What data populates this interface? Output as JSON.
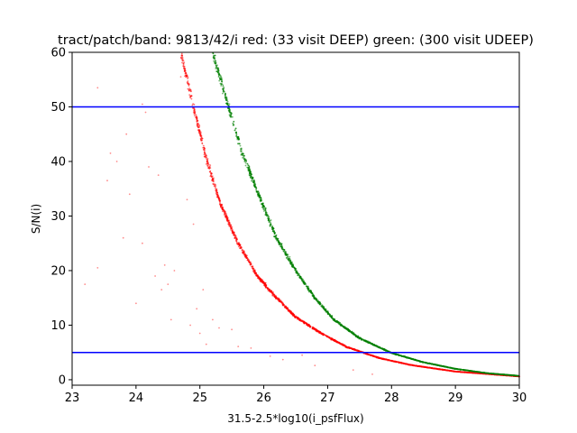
{
  "chart_data": {
    "type": "scatter",
    "title": "tract/patch/band: 9813/42/i red: (33 visit DEEP) green: (300 visit UDEEP)",
    "xlabel": "31.5-2.5*log10(i_psfFlux)",
    "ylabel": "S/N(i)",
    "xlim": [
      23,
      30
    ],
    "ylim": [
      -1,
      60
    ],
    "xticks": [
      "23",
      "24",
      "25",
      "26",
      "27",
      "28",
      "29",
      "30"
    ],
    "yticks": [
      "0",
      "10",
      "20",
      "30",
      "40",
      "50",
      "60"
    ],
    "grid": false,
    "legend": "none",
    "series": [
      {
        "color": "#ff0000",
        "curve": [
          [
            24.7,
            60
          ],
          [
            24.9,
            50
          ],
          [
            25.1,
            40.5
          ],
          [
            25.33,
            32
          ],
          [
            25.6,
            25
          ],
          [
            25.9,
            19
          ],
          [
            26.2,
            15
          ],
          [
            26.5,
            11.5
          ],
          [
            26.9,
            8.5
          ],
          [
            27.3,
            6
          ],
          [
            27.8,
            4
          ],
          [
            28.3,
            2.7
          ],
          [
            29.0,
            1.5
          ],
          [
            30.0,
            0.6
          ]
        ],
        "scattered_points": [
          [
            23.2,
            17.5
          ],
          [
            23.4,
            53.5
          ],
          [
            23.4,
            20.5
          ],
          [
            23.55,
            36.5
          ],
          [
            23.6,
            41.5
          ],
          [
            23.7,
            40
          ],
          [
            23.8,
            26
          ],
          [
            23.85,
            45
          ],
          [
            23.9,
            34
          ],
          [
            24.0,
            14
          ],
          [
            24.1,
            25
          ],
          [
            24.1,
            50.5
          ],
          [
            24.15,
            49
          ],
          [
            24.2,
            39
          ],
          [
            24.3,
            19
          ],
          [
            24.35,
            37.5
          ],
          [
            24.4,
            16.5
          ],
          [
            24.45,
            21
          ],
          [
            24.5,
            17.5
          ],
          [
            24.55,
            11
          ],
          [
            24.6,
            20
          ],
          [
            24.7,
            55.5
          ],
          [
            24.8,
            33
          ],
          [
            24.85,
            10
          ],
          [
            24.9,
            28.5
          ],
          [
            24.95,
            13
          ],
          [
            25.0,
            8.5
          ],
          [
            25.05,
            16.5
          ],
          [
            25.1,
            6.5
          ],
          [
            25.2,
            11
          ],
          [
            25.3,
            9.5
          ],
          [
            25.5,
            9.2
          ],
          [
            25.6,
            6.1
          ],
          [
            25.8,
            5.8
          ],
          [
            26.1,
            4.3
          ],
          [
            26.3,
            3.7
          ],
          [
            26.6,
            4.5
          ],
          [
            26.8,
            2.6
          ],
          [
            27.4,
            1.8
          ],
          [
            27.7,
            1.0
          ]
        ]
      },
      {
        "color": "#008000",
        "curve": [
          [
            25.2,
            60
          ],
          [
            25.45,
            50
          ],
          [
            25.65,
            42
          ],
          [
            25.95,
            33
          ],
          [
            26.2,
            26
          ],
          [
            26.5,
            20
          ],
          [
            26.8,
            15
          ],
          [
            27.1,
            11
          ],
          [
            27.5,
            7.6
          ],
          [
            28.0,
            4.9
          ],
          [
            28.5,
            3.2
          ],
          [
            29.0,
            2.0
          ],
          [
            29.5,
            1.2
          ],
          [
            30.0,
            0.7
          ]
        ],
        "scattered_points": []
      }
    ],
    "hlines": [
      {
        "y": 50,
        "color": "#0000ff"
      },
      {
        "y": 5,
        "color": "#0000ff"
      }
    ]
  }
}
